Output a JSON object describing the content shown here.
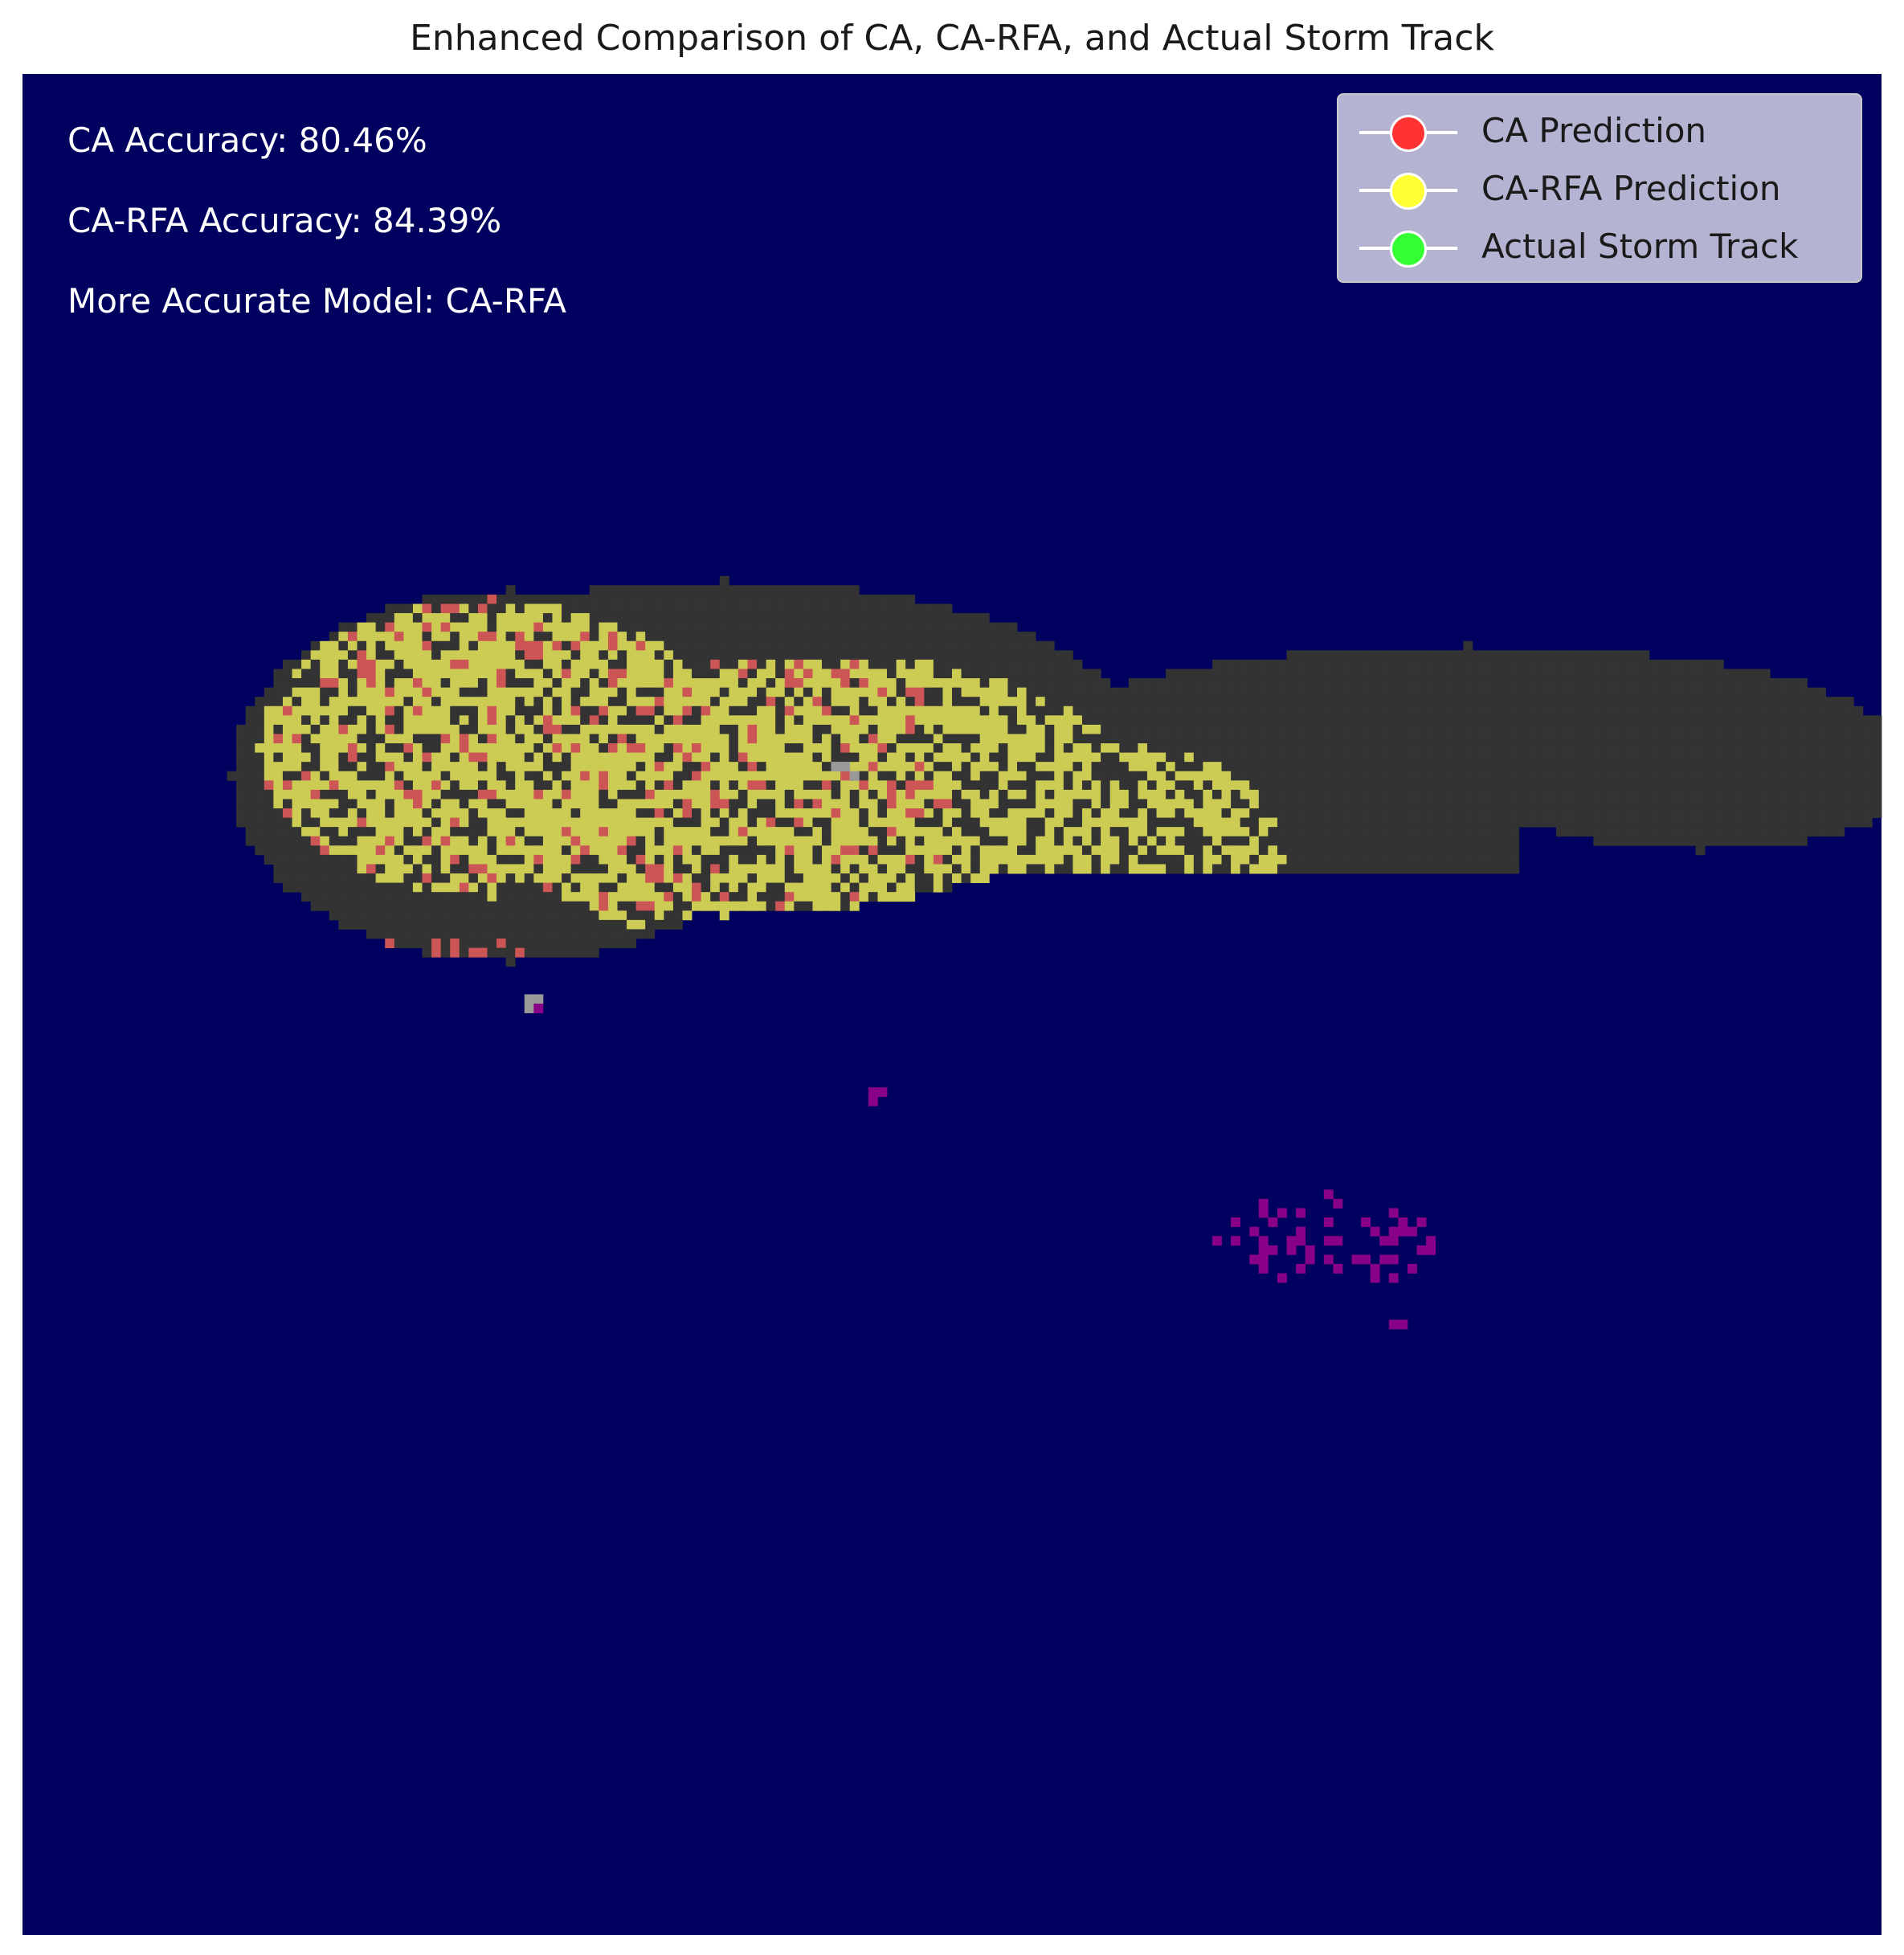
{
  "chart_data": {
    "type": "heatmap",
    "title": "Enhanced Comparison of CA, CA-RFA, and Actual Storm Track",
    "xlabel": "",
    "ylabel": "",
    "axes_visible": false,
    "grid": false,
    "legend_placement": "top-right",
    "annotations": [
      "CA Accuracy: 80.46%",
      "CA-RFA Accuracy: 84.39%",
      "More Accurate Model: CA-RFA"
    ],
    "metrics": {
      "ca_accuracy_percent": 80.46,
      "ca_rfa_accuracy_percent": 84.39,
      "more_accurate_model": "CA-RFA"
    },
    "series": [
      {
        "name": "CA Prediction",
        "color": "#ff3333"
      },
      {
        "name": "CA-RFA Prediction",
        "color": "#ffff33"
      },
      {
        "name": "Actual Storm Track",
        "color": "#33ff33"
      }
    ],
    "cell_colors": {
      "background": "#00005f",
      "storm_region": "#333333",
      "ca_cells": "#cc5555",
      "ca_rfa_cells": "#cccc55",
      "overlap_cells": "#999999",
      "miss_cells": "#880088"
    }
  },
  "legend": {
    "items": [
      {
        "label": "CA Prediction",
        "color": "#ff3333"
      },
      {
        "label": "CA-RFA Prediction",
        "color": "#ffff33"
      },
      {
        "label": "Actual Storm Track",
        "color": "#33ff33"
      }
    ]
  }
}
